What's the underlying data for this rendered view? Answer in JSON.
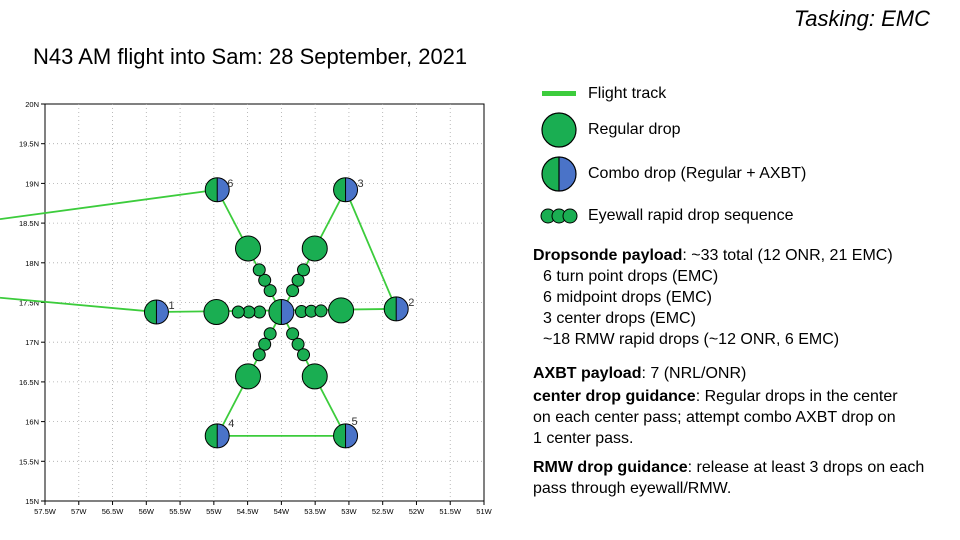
{
  "header": {
    "tasking": "Tasking: EMC",
    "title": "N43 AM flight into Sam: 28 September, 2021"
  },
  "colors": {
    "track": "#3ccc3c",
    "drop_green": "#1aae52",
    "axbt_blue": "#4a73c8"
  },
  "map": {
    "lon_range": [
      -57.5,
      -51
    ],
    "lat_range": [
      15,
      20
    ],
    "x_ticks": [
      "57.5W",
      "57W",
      "56.5W",
      "56W",
      "55.5W",
      "55W",
      "54.5W",
      "54W",
      "53.5W",
      "53W",
      "52.5W",
      "52W",
      "51.5W",
      "51W"
    ],
    "y_ticks": [
      "15N",
      "15.5N",
      "16N",
      "16.5N",
      "17N",
      "17.5N",
      "18N",
      "18.5N",
      "19N",
      "19.5N",
      "20N"
    ],
    "turn_points": [
      {
        "label": "1",
        "lon": -55.85,
        "lat": 17.38
      },
      {
        "label": "2",
        "lon": -52.3,
        "lat": 17.42
      },
      {
        "label": "3",
        "lon": -53.05,
        "lat": 18.92
      },
      {
        "label": "4",
        "lon": -54.95,
        "lat": 15.82
      },
      {
        "label": "5",
        "lon": -53.05,
        "lat": 15.82
      },
      {
        "label": "6",
        "lon": -54.95,
        "lat": 18.92
      }
    ]
  },
  "legend": {
    "flight_track": "Flight track",
    "regular_drop": "Regular drop",
    "combo_drop": "Combo drop (Regular + AXBT)",
    "eyewall": "Eyewall rapid drop sequence"
  },
  "info": {
    "dropsonde_head": "Dropsonde payload",
    "dropsonde_val": ": ~33 total (12 ONR, 21 EMC)",
    "items": [
      "6 turn point drops (EMC)",
      "6 midpoint drops (EMC)",
      "3 center drops (EMC)",
      "~18 RMW rapid drops (~12 ONR, 6 EMC)"
    ],
    "axbt_head": "AXBT payload",
    "axbt_val": ": 7 (NRL/ONR)",
    "center_head": "center drop guidance",
    "center_val": ": Regular drops in the center on each center pass; attempt combo AXBT drop on 1 center pass.",
    "rmw_head": "RMW drop guidance",
    "rmw_val": ": release at least 3 drops on each pass through eyewall/RMW."
  }
}
